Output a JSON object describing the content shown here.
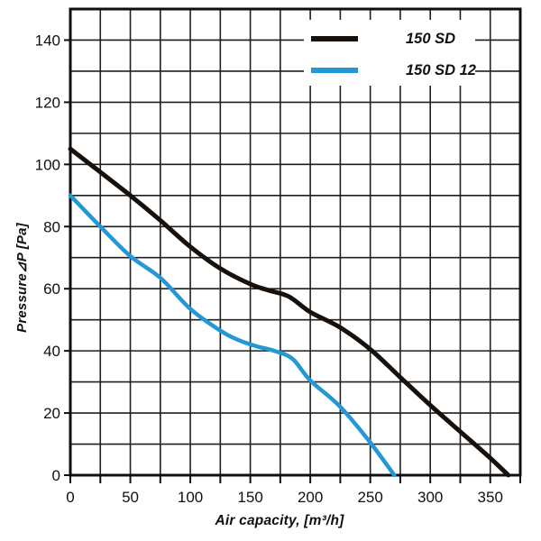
{
  "chart_data": {
    "type": "line",
    "title": "",
    "xlabel": "Air capacity, [m³/h]",
    "ylabel": "Pressure⊿P [Pa]",
    "xlim": [
      0,
      375
    ],
    "ylim": [
      0,
      150
    ],
    "x_major_ticks": [
      0,
      50,
      100,
      150,
      200,
      250,
      300,
      350
    ],
    "y_major_ticks": [
      0,
      20,
      40,
      60,
      80,
      100,
      120,
      140
    ],
    "x_minor_step": 25,
    "y_minor_step": 10,
    "grid": true,
    "legend_position": "top-right",
    "series": [
      {
        "name": "150 SD",
        "color": "#18110b",
        "points": [
          [
            0,
            105
          ],
          [
            25,
            97.5
          ],
          [
            50,
            90
          ],
          [
            75,
            82
          ],
          [
            100,
            73.5
          ],
          [
            125,
            66.5
          ],
          [
            150,
            61.5
          ],
          [
            165,
            59.5
          ],
          [
            182,
            57.5
          ],
          [
            200,
            52.5
          ],
          [
            225,
            47.5
          ],
          [
            250,
            40.5
          ],
          [
            275,
            31.5
          ],
          [
            300,
            22.5
          ],
          [
            325,
            14
          ],
          [
            350,
            5.5
          ],
          [
            365,
            0
          ]
        ]
      },
      {
        "name": "150 SD 12",
        "color": "#2398d4",
        "points": [
          [
            0,
            90
          ],
          [
            25,
            80
          ],
          [
            50,
            70.5
          ],
          [
            75,
            63.5
          ],
          [
            100,
            53.5
          ],
          [
            125,
            46.5
          ],
          [
            140,
            43.5
          ],
          [
            155,
            41.5
          ],
          [
            170,
            40
          ],
          [
            185,
            37.5
          ],
          [
            200,
            30.5
          ],
          [
            225,
            22
          ],
          [
            250,
            10.5
          ],
          [
            270,
            0
          ]
        ]
      }
    ]
  },
  "colors": {
    "background": "#ffffff",
    "grid": "#1f1f1f",
    "border": "#0f0f0f",
    "text": "#101010"
  }
}
